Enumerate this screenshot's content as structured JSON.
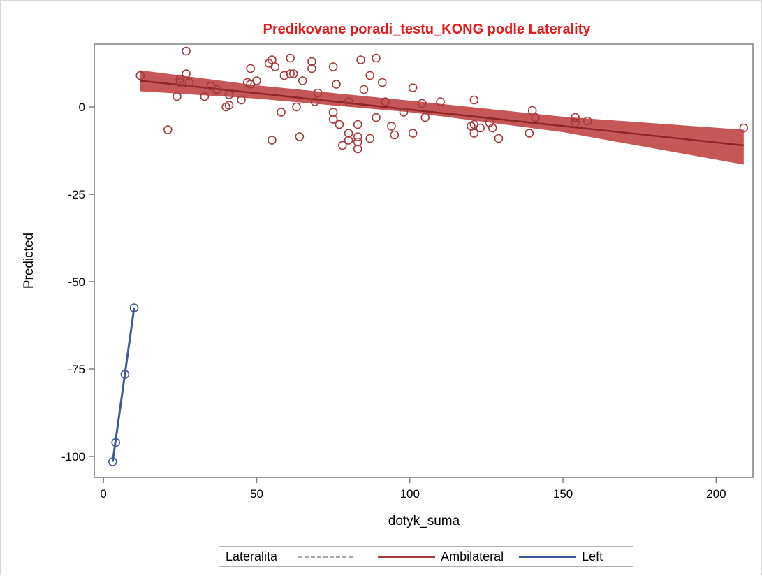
{
  "colors": {
    "ambilateral": "#a33a3a",
    "band": "#c44d4d",
    "left": "#3d5a96",
    "missing": "#a8a8a8",
    "title": "#e31a1c",
    "axis": "#7f7f7f"
  },
  "chart_data": {
    "type": "scatter",
    "title": "Predikovane poradi_testu_KONG podle Laterality",
    "xlabel": "dotyk_suma",
    "ylabel": "Predicted",
    "xlim": [
      -3,
      212
    ],
    "ylim": [
      -106,
      18
    ],
    "xticks": [
      0,
      50,
      100,
      150,
      200
    ],
    "yticks": [
      0,
      -25,
      -50,
      -75,
      -100
    ],
    "grid": false,
    "legend_position": "bottom",
    "legend": {
      "title": "Lateralita",
      "entries": [
        {
          "label": "",
          "style": "dashed"
        },
        {
          "label": "Ambilateral",
          "style": "solid"
        },
        {
          "label": "Left",
          "style": "solid"
        }
      ]
    },
    "series": [
      {
        "name": "Ambilateral",
        "fit_line": [
          [
            12,
            7.5
          ],
          [
            209,
            -11
          ]
        ],
        "confidence_band": {
          "upper": [
            [
              12,
              10.5
            ],
            [
              50,
              6.2
            ],
            [
              100,
              1.8
            ],
            [
              150,
              -2.8
            ],
            [
              209,
              -6.5
            ]
          ],
          "lower": [
            [
              12,
              4.5
            ],
            [
              50,
              2.4
            ],
            [
              100,
              -1.5
            ],
            [
              150,
              -7.2
            ],
            [
              209,
              -16.5
            ]
          ]
        },
        "points": [
          [
            12,
            9
          ],
          [
            21,
            -6.5
          ],
          [
            24,
            3
          ],
          [
            25,
            7
          ],
          [
            25,
            8
          ],
          [
            27,
            16
          ],
          [
            27,
            9.5
          ],
          [
            28,
            7
          ],
          [
            33,
            3
          ],
          [
            35,
            6
          ],
          [
            37,
            5
          ],
          [
            40,
            0
          ],
          [
            41,
            0.5
          ],
          [
            41,
            3.5
          ],
          [
            45,
            2
          ],
          [
            47,
            7
          ],
          [
            48,
            11
          ],
          [
            48,
            6.5
          ],
          [
            50,
            7.5
          ],
          [
            54,
            12.5
          ],
          [
            55,
            13.5
          ],
          [
            55,
            -9.5
          ],
          [
            56,
            11.5
          ],
          [
            58,
            -1.5
          ],
          [
            59,
            9
          ],
          [
            61,
            9.5
          ],
          [
            61,
            14
          ],
          [
            62,
            9.5
          ],
          [
            63,
            0
          ],
          [
            64,
            -8.5
          ],
          [
            65,
            7.5
          ],
          [
            68,
            13
          ],
          [
            68,
            11
          ],
          [
            69,
            1.5
          ],
          [
            70,
            4
          ],
          [
            75,
            11.5
          ],
          [
            75,
            -1.5
          ],
          [
            75,
            -3.5
          ],
          [
            76,
            6.5
          ],
          [
            77,
            -5
          ],
          [
            78,
            -11
          ],
          [
            80,
            1.5
          ],
          [
            80,
            -7.5
          ],
          [
            80,
            -9.5
          ],
          [
            83,
            -5
          ],
          [
            83,
            -8.5
          ],
          [
            83,
            -10
          ],
          [
            83,
            -12
          ],
          [
            84,
            13.5
          ],
          [
            85,
            5
          ],
          [
            87,
            9
          ],
          [
            87,
            -9
          ],
          [
            89,
            14
          ],
          [
            89,
            -3
          ],
          [
            91,
            7
          ],
          [
            92,
            1.5
          ],
          [
            94,
            -5.5
          ],
          [
            95,
            -8
          ],
          [
            98,
            -1.5
          ],
          [
            101,
            5.5
          ],
          [
            101,
            -7.5
          ],
          [
            104,
            1
          ],
          [
            105,
            -3
          ],
          [
            110,
            1.5
          ],
          [
            120,
            -5.5
          ],
          [
            121,
            2
          ],
          [
            121,
            -5
          ],
          [
            121,
            -7.5
          ],
          [
            123,
            -6
          ],
          [
            126,
            -4.5
          ],
          [
            127,
            -6
          ],
          [
            129,
            -9
          ],
          [
            139,
            -7.5
          ],
          [
            140,
            -1
          ],
          [
            141,
            -3
          ],
          [
            154,
            -3
          ],
          [
            154,
            -4.5
          ],
          [
            158,
            -4
          ],
          [
            209,
            -6
          ]
        ]
      },
      {
        "name": "Left",
        "fit_line": [
          [
            3,
            -101.5
          ],
          [
            10,
            -57.5
          ]
        ],
        "points": [
          [
            3,
            -101.5
          ],
          [
            4,
            -96
          ],
          [
            7,
            -76.5
          ],
          [
            10,
            -57.5
          ]
        ]
      }
    ]
  }
}
